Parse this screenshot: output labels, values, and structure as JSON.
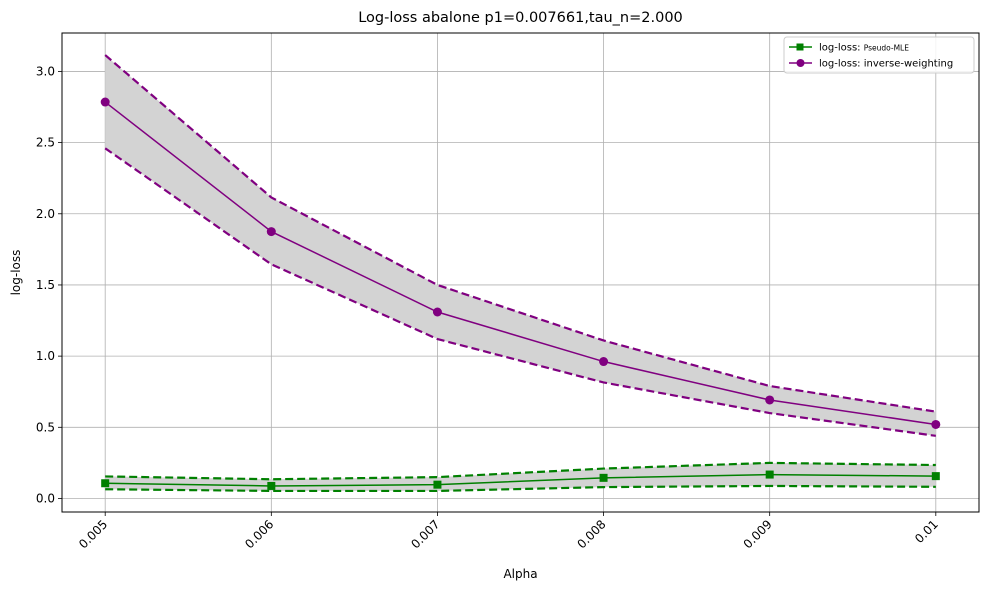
{
  "chart_data": {
    "type": "line",
    "title": "Log-loss abalone p1=0.007661,tau_n=2.000",
    "xlabel": "Alpha",
    "ylabel": "log-loss",
    "x": [
      0.005,
      0.006,
      0.007,
      0.008,
      0.009,
      0.01
    ],
    "x_tick_labels": [
      "0.005",
      "0.006",
      "0.007",
      "0.008",
      "0.009",
      "0.01"
    ],
    "xlim": [
      0.00474,
      0.01026
    ],
    "ylim": [
      -0.095,
      3.27
    ],
    "y_ticks": [
      0.0,
      0.5,
      1.0,
      1.5,
      2.0,
      2.5,
      3.0
    ],
    "y_tick_labels": [
      "0.0",
      "0.5",
      "1.0",
      "1.5",
      "2.0",
      "2.5",
      "3.0"
    ],
    "grid": true,
    "legend_position": "top-right",
    "series": [
      {
        "name": "log-loss: Pseudo-MLE",
        "name_prefix": "log-loss: ",
        "name_suffix": "Pseudo-MLE",
        "color": "#008000",
        "marker": "square",
        "values": [
          0.107,
          0.088,
          0.097,
          0.145,
          0.168,
          0.157
        ],
        "upper": [
          0.155,
          0.135,
          0.15,
          0.21,
          0.25,
          0.235
        ],
        "lower": [
          0.065,
          0.053,
          0.053,
          0.08,
          0.088,
          0.082
        ]
      },
      {
        "name": "log-loss: inverse-weighting",
        "name_prefix": "log-loss: ",
        "name_suffix": "inverse-weighting",
        "color": "#800080",
        "marker": "circle",
        "values": [
          2.785,
          1.875,
          1.31,
          0.962,
          0.692,
          0.52
        ],
        "upper": [
          3.115,
          2.115,
          1.5,
          1.11,
          0.79,
          0.61
        ],
        "lower": [
          2.46,
          1.645,
          1.12,
          0.815,
          0.6,
          0.44
        ]
      }
    ],
    "band_color": "#d3d3d3"
  }
}
